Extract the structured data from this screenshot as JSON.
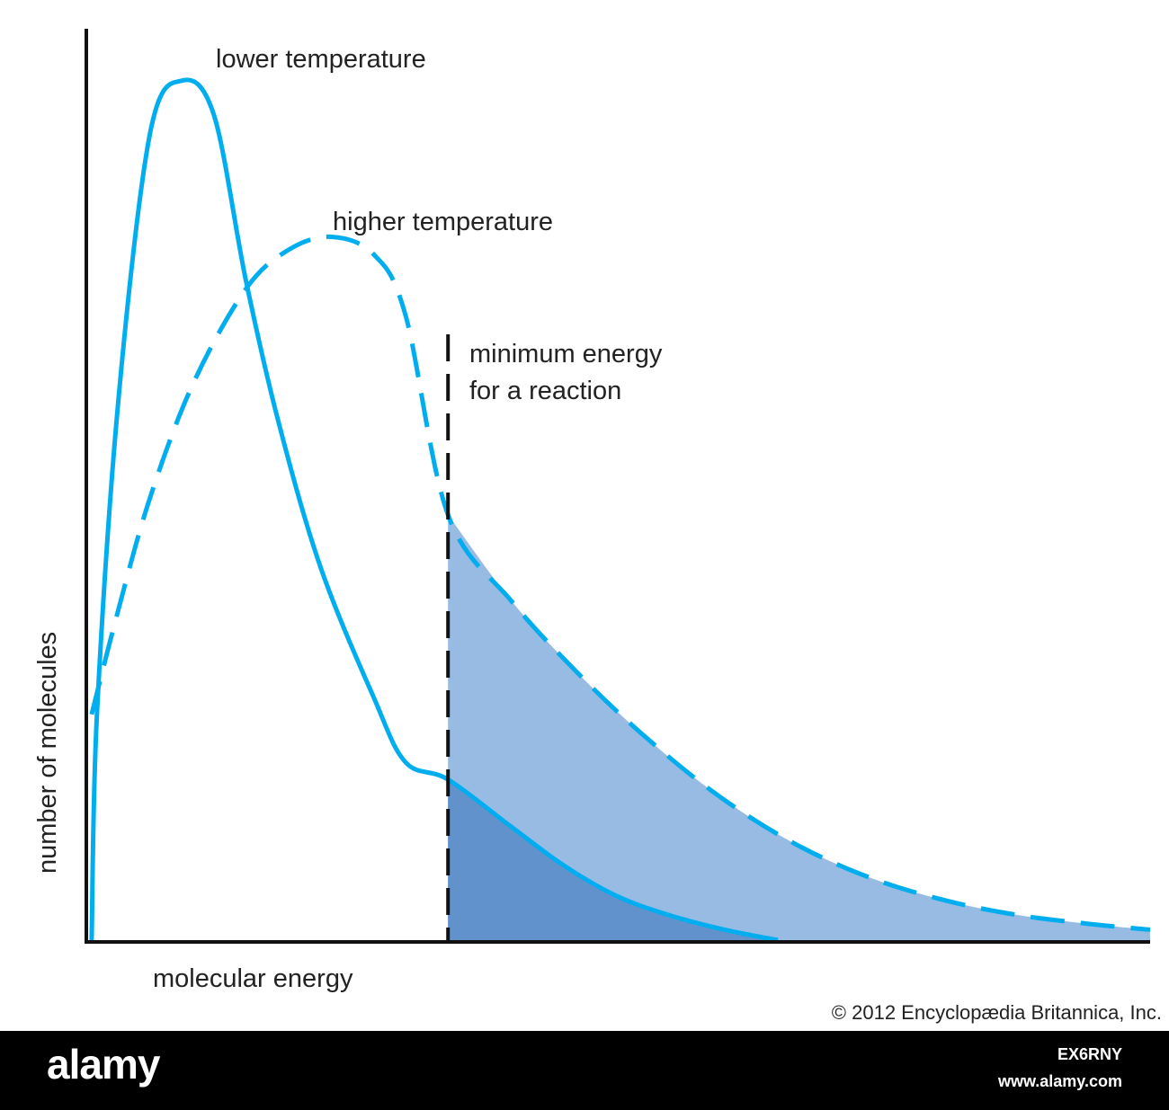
{
  "chart_data": {
    "type": "line",
    "title": "",
    "xlabel": "molecular energy",
    "ylabel": "number of molecules",
    "xlim": [
      0,
      10
    ],
    "ylim": [
      0,
      10
    ],
    "grid": false,
    "series": [
      {
        "name": "lower temperature",
        "style": "solid",
        "color": "#00aeef",
        "points": [
          [
            0.05,
            0
          ],
          [
            0.1,
            2.6
          ],
          [
            0.3,
            6.2
          ],
          [
            0.6,
            9.3
          ],
          [
            0.9,
            9.9
          ],
          [
            1.2,
            9.5
          ],
          [
            1.5,
            7.6
          ],
          [
            1.8,
            6.0
          ],
          [
            2.2,
            4.3
          ],
          [
            2.7,
            2.8
          ],
          [
            3.0,
            2.05
          ],
          [
            3.4,
            1.85
          ],
          [
            4.0,
            1.3
          ],
          [
            4.5,
            0.85
          ],
          [
            5.0,
            0.5
          ],
          [
            5.5,
            0.28
          ],
          [
            6.0,
            0.12
          ],
          [
            6.5,
            0.0
          ]
        ]
      },
      {
        "name": "higher temperature",
        "style": "dashed",
        "color": "#00aeef",
        "points": [
          [
            0.05,
            2.6
          ],
          [
            0.3,
            3.8
          ],
          [
            0.6,
            5.1
          ],
          [
            1.0,
            6.4
          ],
          [
            1.5,
            7.5
          ],
          [
            1.9,
            7.95
          ],
          [
            2.3,
            8.1
          ],
          [
            2.7,
            7.9
          ],
          [
            3.0,
            7.2
          ],
          [
            3.4,
            4.9
          ],
          [
            4.0,
            3.9
          ],
          [
            4.6,
            3.1
          ],
          [
            5.2,
            2.4
          ],
          [
            5.9,
            1.7
          ],
          [
            6.6,
            1.15
          ],
          [
            7.3,
            0.75
          ],
          [
            8.0,
            0.48
          ],
          [
            8.7,
            0.3
          ],
          [
            9.4,
            0.19
          ],
          [
            10.0,
            0.12
          ]
        ]
      }
    ],
    "threshold": {
      "label_lines": [
        "minimum energy",
        "for a reaction"
      ],
      "x": 3.4,
      "style": "dashed",
      "color": "#111111"
    },
    "shading": {
      "higher_area_color": "#98bbe4",
      "lower_area_color": "#6192cb"
    },
    "annotation_labels": {
      "lower": "lower temperature",
      "higher": "higher temperature"
    }
  },
  "footer": {
    "copyright": "© 2012 Encyclopædia  Britannica, Inc."
  },
  "banner": {
    "logo": "alamy",
    "image_id": "EX6RNY",
    "url": "www.alamy.com"
  }
}
